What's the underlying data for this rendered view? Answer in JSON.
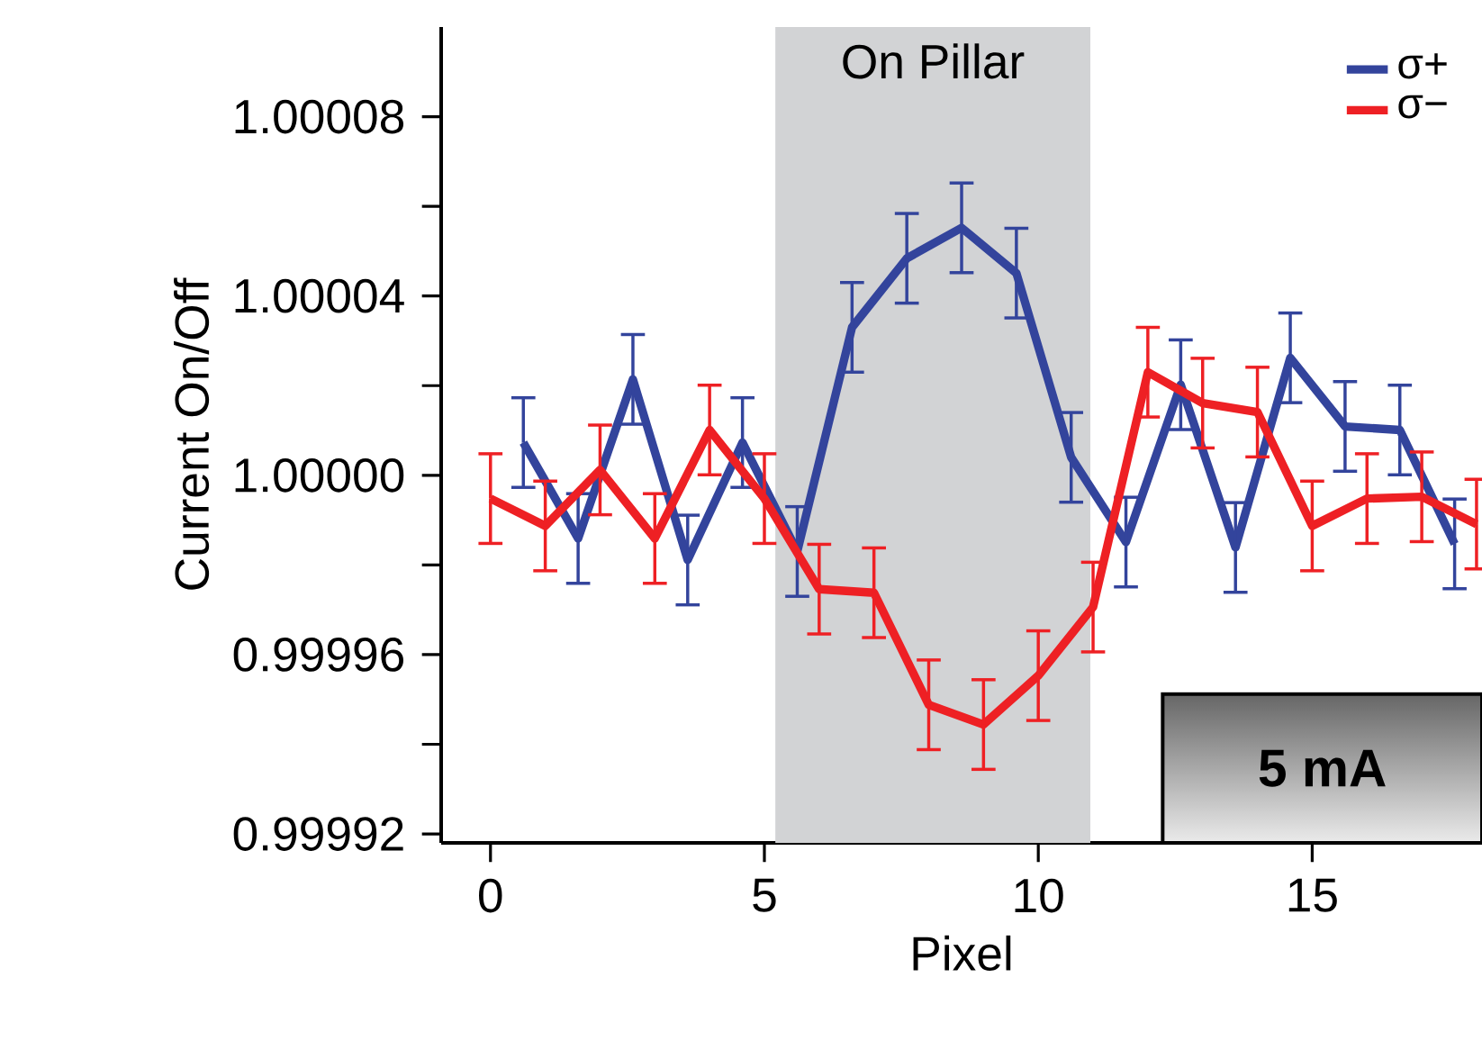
{
  "chart_data": {
    "type": "line",
    "xlabel": "Pixel",
    "ylabel": "Current On/Off",
    "xlim": [
      -0.9,
      18.1
    ],
    "ylim": [
      0.999918,
      1.0001
    ],
    "xticks": [
      0,
      5,
      10,
      15
    ],
    "yticks": [
      {
        "value": 0.99992,
        "label": "0.99992"
      },
      {
        "value": 0.99994,
        "label": null
      },
      {
        "value": 0.99996,
        "label": "0.99996"
      },
      {
        "value": 0.99998,
        "label": null
      },
      {
        "value": 1.0,
        "label": "1.00000"
      },
      {
        "value": 1.00002,
        "label": null
      },
      {
        "value": 1.00004,
        "label": "1.00004"
      },
      {
        "value": 1.00006,
        "label": null
      },
      {
        "value": 1.00008,
        "label": "1.00008"
      }
    ],
    "grid": false,
    "legend": "top right",
    "marker": "none",
    "line_style": "solid",
    "bands": [
      {
        "axis": "x",
        "from": 5.2,
        "to": 10.95,
        "label": "On Pillar",
        "color": "#d2d3d5"
      }
    ],
    "annotations": [
      "5 mA"
    ],
    "series": [
      {
        "name": "σ+",
        "color": "#33449c",
        "x": [
          0.6,
          1.6,
          2.6,
          3.6,
          4.6,
          5.6,
          6.6,
          7.6,
          8.6,
          9.6,
          10.6,
          11.6,
          12.6,
          13.6,
          14.6,
          15.6,
          16.6,
          17.6
        ],
        "values": [
          1.0000073,
          0.9999859,
          1.0000214,
          0.9999811,
          1.0000073,
          0.999983,
          1.000033,
          1.0000484,
          1.0000552,
          1.0000451,
          1.000004,
          0.9999851,
          1.0000202,
          0.9999839,
          1.0000262,
          1.0000109,
          1.0000101,
          0.9999847
        ],
        "errors": [
          1e-05,
          1e-05,
          1e-05,
          1e-05,
          1e-05,
          1e-05,
          1e-05,
          1e-05,
          1e-05,
          1e-05,
          1e-05,
          1e-05,
          1e-05,
          1e-05,
          1e-05,
          1e-05,
          1e-05,
          1e-05
        ]
      },
      {
        "name": "σ−",
        "color": "#ee2024",
        "x": [
          0,
          1,
          2,
          3,
          4,
          5,
          6,
          7,
          8,
          9,
          10,
          11,
          12,
          13,
          14,
          15,
          16,
          17,
          18
        ],
        "values": [
          0.9999948,
          0.9999887,
          1.0000012,
          0.9999859,
          1.0000101,
          0.9999948,
          0.9999746,
          0.9999738,
          0.9999488,
          0.9999444,
          0.9999553,
          0.9999706,
          1.000023,
          1.0000161,
          1.0000141,
          0.9999887,
          0.9999948,
          0.9999952,
          0.9999891
        ],
        "errors": [
          1e-05,
          1e-05,
          1e-05,
          1e-05,
          1e-05,
          1e-05,
          1e-05,
          1e-05,
          1e-05,
          1e-05,
          1e-05,
          1e-05,
          1e-05,
          1e-05,
          1e-05,
          1e-05,
          1e-05,
          1e-05,
          1e-05
        ]
      }
    ]
  }
}
